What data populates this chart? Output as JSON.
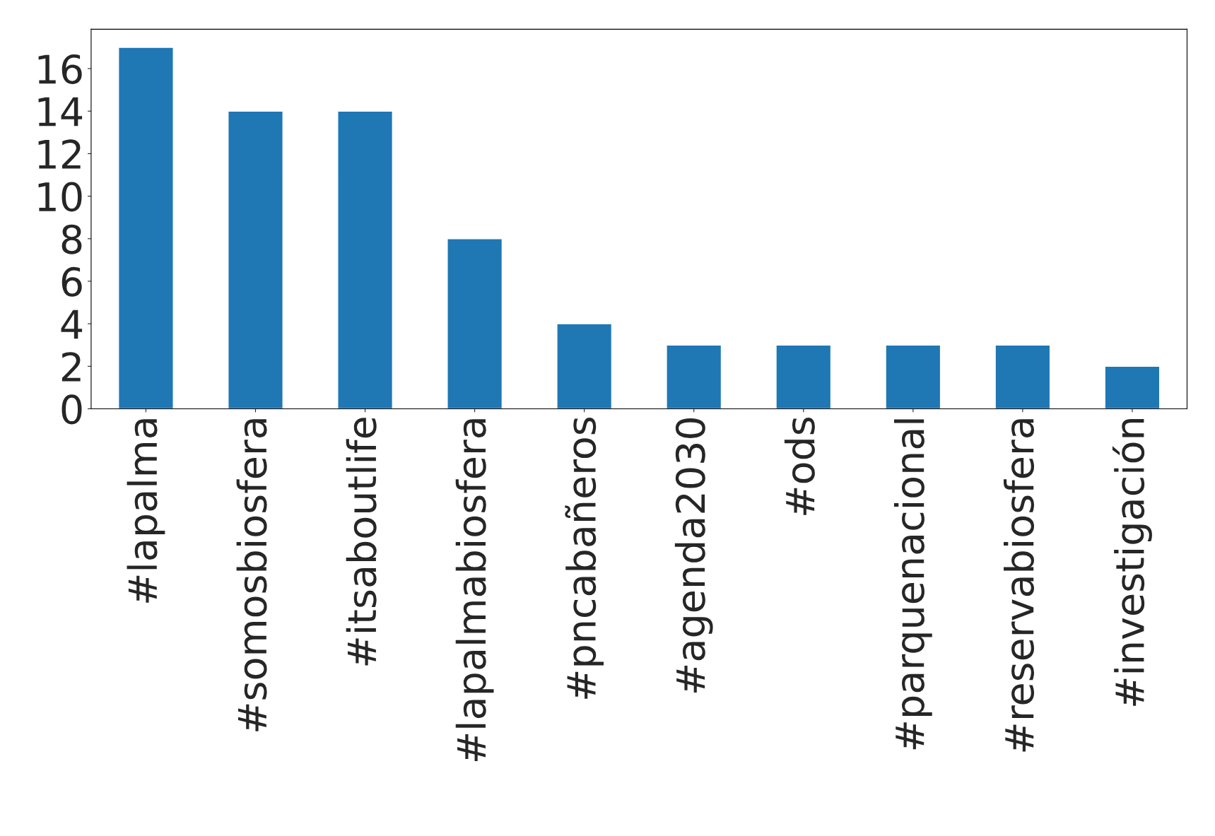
{
  "chart_data": {
    "type": "bar",
    "categories": [
      "#lapalma",
      "#somosbiosfera",
      "#itsaboutlife",
      "#lapalmabiosfera",
      "#pncabañeros",
      "#agenda2030",
      "#ods",
      "#parquenacional",
      "#reservabiosfera",
      "#investigación"
    ],
    "values": [
      17,
      14,
      14,
      8,
      4,
      3,
      3,
      3,
      3,
      2
    ],
    "color": "#1f77b4",
    "ylim": [
      0,
      17.85
    ],
    "yticks": [
      0,
      2,
      4,
      6,
      8,
      10,
      12,
      14,
      16
    ],
    "grid": false
  }
}
